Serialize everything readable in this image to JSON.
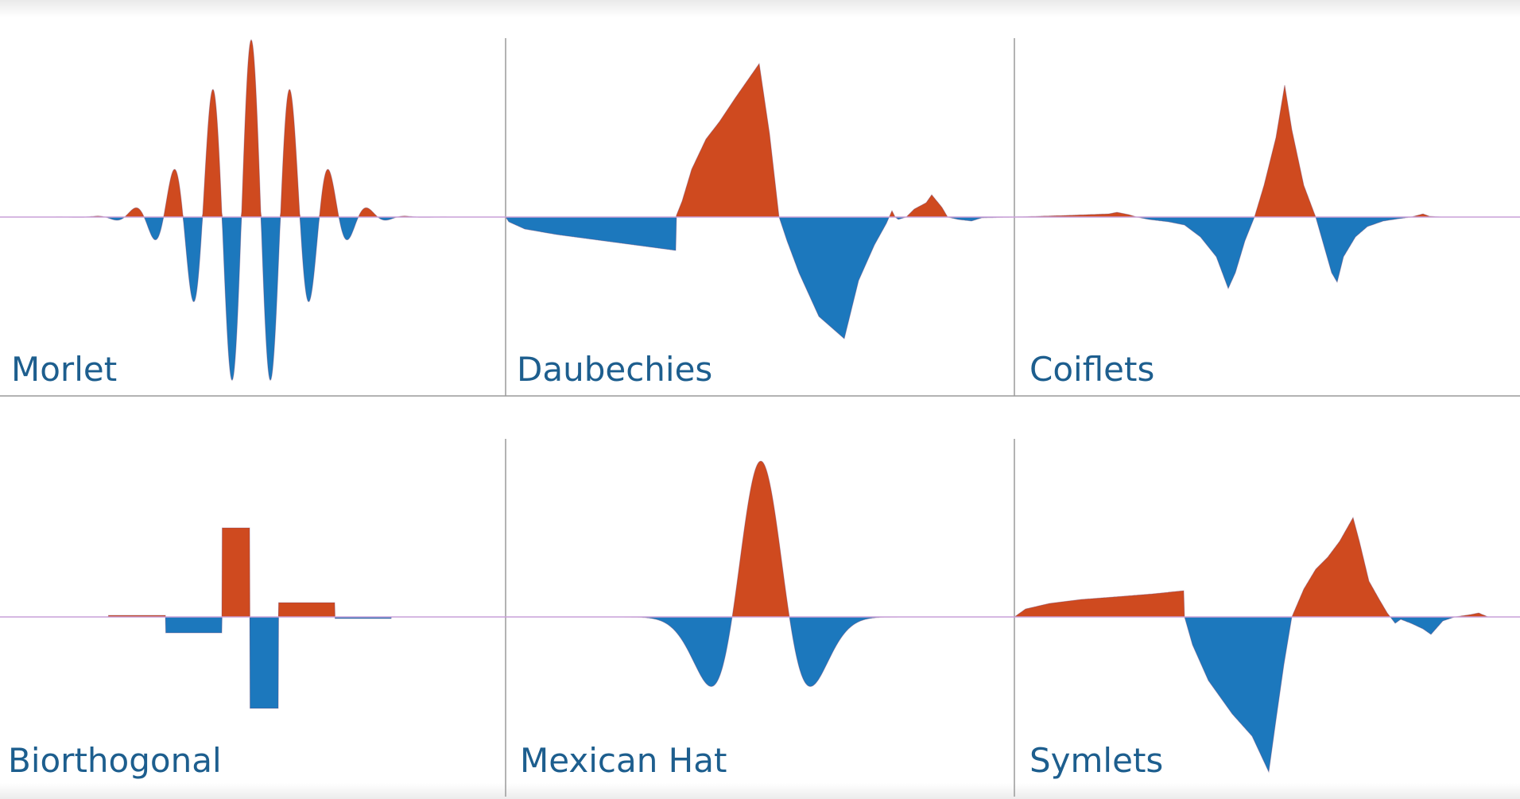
{
  "colors": {
    "positive": "#cf4a1f",
    "negative": "#1c78bd",
    "baseline": "#c9a0d8",
    "divider": "#9a9a9a",
    "label": "#1d5e8e"
  },
  "panels": [
    {
      "id": "morlet",
      "label": "Morlet"
    },
    {
      "id": "daubechies",
      "label": "Daubechies"
    },
    {
      "id": "coiflets",
      "label": "Coiflets"
    },
    {
      "id": "biorthogonal",
      "label": "Biorthogonal"
    },
    {
      "id": "mexican-hat",
      "label": "Mexican Hat"
    },
    {
      "id": "symlets",
      "label": "Symlets"
    }
  ]
}
